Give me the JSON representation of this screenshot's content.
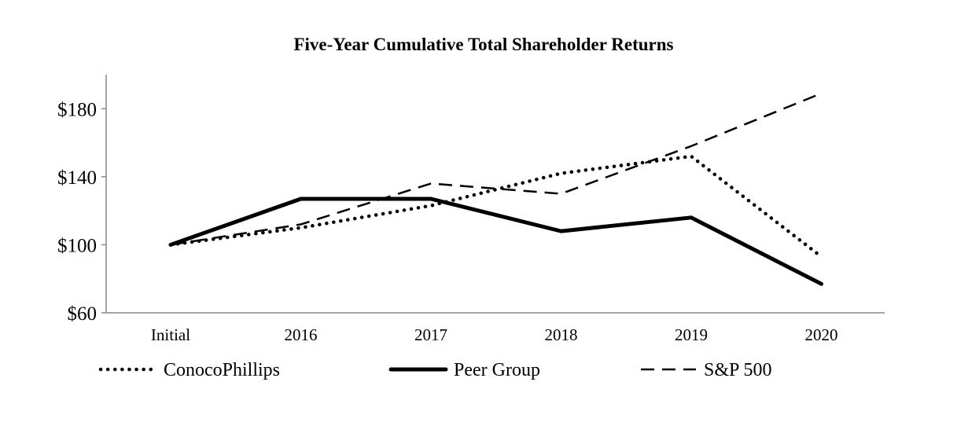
{
  "chart_data": {
    "type": "line",
    "title": "Five-Year Cumulative Total Shareholder Returns",
    "xlabel": "",
    "ylabel": "",
    "categories": [
      "Initial",
      "2016",
      "2017",
      "2018",
      "2019",
      "2020"
    ],
    "ylim": [
      60,
      200
    ],
    "yticks": [
      60,
      100,
      140,
      180
    ],
    "ytick_labels": [
      "$60",
      "$100",
      "$140",
      "$180"
    ],
    "grid": false,
    "legend_position": "bottom",
    "series": [
      {
        "name": "ConocoPhillips",
        "values": [
          100,
          110,
          123,
          142,
          152,
          93
        ],
        "style": "dotted",
        "color": "#000000"
      },
      {
        "name": "Peer Group",
        "values": [
          100,
          127,
          127,
          108,
          116,
          77
        ],
        "style": "solid-thick",
        "color": "#000000"
      },
      {
        "name": "S&P 500",
        "values": [
          100,
          112,
          136,
          130,
          158,
          189
        ],
        "style": "dashed",
        "color": "#000000"
      }
    ]
  }
}
